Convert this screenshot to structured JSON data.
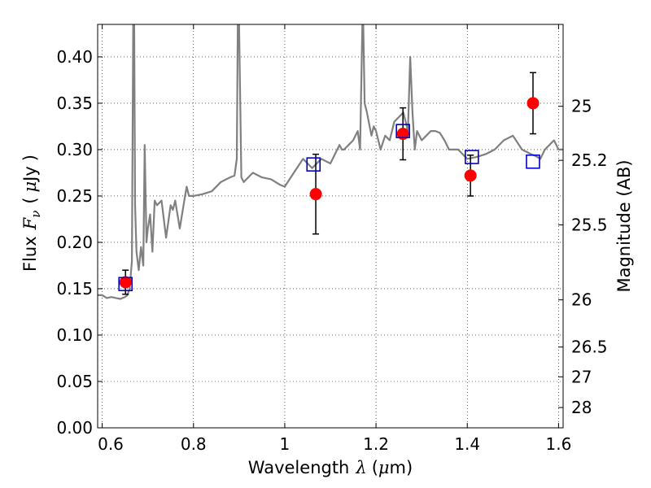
{
  "chart_data": {
    "type": "scatter",
    "xlabel_text": "Wavelength",
    "xlabel_symbol": "λ",
    "xlabel_unit_open": "(",
    "xlabel_unit_mu": "μ",
    "xlabel_unit_rest": "m)",
    "ylabel_text": "Flux",
    "ylabel_symbol": "F",
    "ylabel_sub": "ν",
    "ylabel_unit_open": "(",
    "ylabel_unit_mu": "μ",
    "ylabel_unit_rest": "Jy",
    "ylabel_unit_close": ")",
    "y2label": "Magnitude (AB)",
    "xlim": [
      0.59,
      1.61
    ],
    "ylim": [
      0.0,
      0.435
    ],
    "grid": true,
    "x_ticks": [
      {
        "value": 0.6,
        "label": ""
      },
      {
        "value": 0.8,
        "label": "0.8"
      },
      {
        "value": 1.0,
        "label": "1"
      },
      {
        "value": 1.2,
        "label": "1.2"
      },
      {
        "value": 1.4,
        "label": "1.4"
      },
      {
        "value": 1.6,
        "label": "1.6"
      }
    ],
    "x_first_label": "0.6",
    "y_ticks": [
      {
        "value": 0.0,
        "label": "0.00"
      },
      {
        "value": 0.05,
        "label": "0.05"
      },
      {
        "value": 0.1,
        "label": "0.10"
      },
      {
        "value": 0.15,
        "label": "0.15"
      },
      {
        "value": 0.2,
        "label": "0.20"
      },
      {
        "value": 0.25,
        "label": "0.25"
      },
      {
        "value": 0.3,
        "label": "0.30"
      },
      {
        "value": 0.35,
        "label": "0.35"
      },
      {
        "value": 0.4,
        "label": "0.40"
      }
    ],
    "mag_ticks": [
      {
        "flux": 0.3467,
        "label": "25"
      },
      {
        "flux": 0.2884,
        "label": "25.2"
      },
      {
        "flux": 0.2188,
        "label": "25.5"
      },
      {
        "flux": 0.138,
        "label": "26"
      },
      {
        "flux": 0.0871,
        "label": "26.5"
      },
      {
        "flux": 0.055,
        "label": "27"
      },
      {
        "flux": 0.0219,
        "label": "28"
      }
    ],
    "series": [
      {
        "kind": "line",
        "color": "#808080",
        "x": [
          0.59,
          0.6,
          0.61,
          0.62,
          0.63,
          0.64,
          0.65,
          0.655,
          0.66,
          0.665,
          0.668,
          0.67,
          0.672,
          0.675,
          0.68,
          0.685,
          0.69,
          0.693,
          0.697,
          0.7,
          0.705,
          0.71,
          0.715,
          0.72,
          0.73,
          0.74,
          0.75,
          0.755,
          0.76,
          0.77,
          0.78,
          0.785,
          0.79,
          0.8,
          0.82,
          0.84,
          0.86,
          0.88,
          0.89,
          0.895,
          0.897,
          0.9,
          0.905,
          0.91,
          0.93,
          0.95,
          0.97,
          0.99,
          1.0,
          1.02,
          1.04,
          1.06,
          1.08,
          1.1,
          1.11,
          1.12,
          1.125,
          1.13,
          1.14,
          1.15,
          1.16,
          1.165,
          1.17,
          1.172,
          1.175,
          1.18,
          1.19,
          1.195,
          1.2,
          1.205,
          1.21,
          1.22,
          1.23,
          1.24,
          1.25,
          1.26,
          1.27,
          1.275,
          1.28,
          1.285,
          1.29,
          1.3,
          1.31,
          1.32,
          1.33,
          1.34,
          1.35,
          1.36,
          1.38,
          1.4,
          1.42,
          1.44,
          1.46,
          1.48,
          1.5,
          1.52,
          1.54,
          1.55,
          1.56,
          1.57,
          1.58,
          1.59,
          1.6,
          1.61
        ],
        "y": [
          0.143,
          0.143,
          0.14,
          0.141,
          0.14,
          0.139,
          0.141,
          0.143,
          0.15,
          0.18,
          0.435,
          0.435,
          0.24,
          0.19,
          0.17,
          0.195,
          0.175,
          0.305,
          0.2,
          0.215,
          0.23,
          0.19,
          0.245,
          0.24,
          0.245,
          0.205,
          0.24,
          0.235,
          0.245,
          0.215,
          0.245,
          0.26,
          0.25,
          0.25,
          0.252,
          0.255,
          0.265,
          0.27,
          0.272,
          0.29,
          0.435,
          0.435,
          0.27,
          0.265,
          0.275,
          0.27,
          0.268,
          0.262,
          0.26,
          0.275,
          0.29,
          0.28,
          0.29,
          0.285,
          0.295,
          0.305,
          0.3,
          0.3,
          0.305,
          0.31,
          0.32,
          0.3,
          0.435,
          0.435,
          0.35,
          0.34,
          0.315,
          0.325,
          0.32,
          0.31,
          0.3,
          0.315,
          0.31,
          0.33,
          0.335,
          0.34,
          0.32,
          0.4,
          0.34,
          0.3,
          0.32,
          0.31,
          0.315,
          0.32,
          0.32,
          0.318,
          0.31,
          0.3,
          0.3,
          0.29,
          0.292,
          0.295,
          0.3,
          0.31,
          0.315,
          0.3,
          0.295,
          0.293,
          0.29,
          0.3,
          0.305,
          0.31,
          0.3,
          0.3
        ]
      }
    ],
    "photometry": [
      {
        "x": 0.651,
        "y": 0.157,
        "yerr": 0.013
      },
      {
        "x": 1.068,
        "y": 0.252,
        "yerr": 0.043
      },
      {
        "x": 1.259,
        "y": 0.317,
        "yerr": 0.028
      },
      {
        "x": 1.407,
        "y": 0.272,
        "yerr": 0.022
      },
      {
        "x": 1.544,
        "y": 0.35,
        "yerr": 0.033
      }
    ],
    "synthetic": [
      {
        "x": 0.651,
        "y": 0.155
      },
      {
        "x": 1.063,
        "y": 0.284
      },
      {
        "x": 1.259,
        "y": 0.32
      },
      {
        "x": 1.41,
        "y": 0.292
      },
      {
        "x": 1.544,
        "y": 0.287
      }
    ],
    "colors": {
      "spectrum": "#808080",
      "photometry": "#ff0000",
      "synthetic": "#0000cc",
      "errorbar": "#000000",
      "grid": "#000000"
    }
  }
}
